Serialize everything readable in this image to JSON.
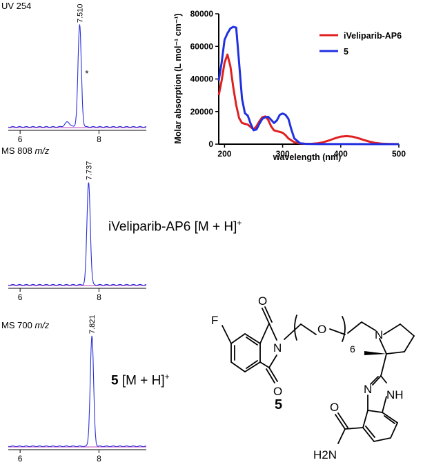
{
  "labels": {
    "uv": "UV 254",
    "ms1": "MS 808",
    "ms2": "MS 700",
    "mz": "m/z",
    "ion1_name": "iVeliparib-AP6",
    "ion_suffix": "[M + H]",
    "ion_charge": "+",
    "ion2_name": "5",
    "compound_label": "5",
    "impurity_mark": "*"
  },
  "structure": {
    "atoms": [
      "O",
      "O",
      "O",
      "F",
      "N",
      "N",
      "NH",
      "N",
      "6",
      "O",
      "H2N"
    ]
  },
  "chart_data": [
    {
      "type": "line",
      "title": "UV 254",
      "x_ticks": [
        6,
        8
      ],
      "xlim": [
        5.7,
        9.2
      ],
      "peak": {
        "rt": 7.51,
        "label": "7.510"
      },
      "annotation": "*"
    },
    {
      "type": "line",
      "title": "MS 808 m/z",
      "x_ticks": [
        6,
        8
      ],
      "xlim": [
        5.7,
        9.2
      ],
      "peak": {
        "rt": 7.737,
        "label": "7.737"
      }
    },
    {
      "type": "line",
      "title": "MS 700 m/z",
      "x_ticks": [
        6,
        8
      ],
      "xlim": [
        5.7,
        9.2
      ],
      "peak": {
        "rt": 7.821,
        "label": "7.821"
      }
    },
    {
      "type": "line",
      "xlabel": "wavelength (nm)",
      "ylabel": "Molar absorption (L mol⁻¹ cm⁻¹)",
      "xlim": [
        190,
        500
      ],
      "ylim": [
        0,
        80000
      ],
      "x_ticks": [
        "200",
        "300",
        "400",
        "500"
      ],
      "y_ticks": [
        "0",
        "20000",
        "40000",
        "60000",
        "80000"
      ],
      "legend": [
        "iVeliparib-AP6",
        "5"
      ],
      "series": [
        {
          "name": "iVeliparib-AP6",
          "color": "#e02020",
          "x": [
            190,
            195,
            200,
            205,
            210,
            215,
            220,
            225,
            230,
            235,
            240,
            245,
            250,
            255,
            260,
            265,
            270,
            275,
            280,
            285,
            290,
            295,
            300,
            305,
            310,
            320,
            330,
            340,
            350,
            360,
            370,
            380,
            390,
            400,
            410,
            420,
            430,
            440,
            450,
            460,
            470,
            480,
            490,
            500
          ],
          "y": [
            30000,
            39000,
            50000,
            55000,
            48000,
            35000,
            24000,
            16000,
            13000,
            12500,
            12000,
            10500,
            9000,
            11000,
            14000,
            16500,
            17000,
            15000,
            11000,
            8500,
            8000,
            7500,
            7000,
            5500,
            3500,
            1200,
            400,
            200,
            200,
            500,
            1200,
            2300,
            3600,
            4600,
            4900,
            4600,
            3700,
            2500,
            1500,
            700,
            300,
            150,
            80,
            50
          ]
        },
        {
          "name": "5",
          "color": "#2030e0",
          "x": [
            190,
            195,
            200,
            205,
            210,
            215,
            220,
            225,
            230,
            235,
            240,
            245,
            250,
            255,
            260,
            265,
            270,
            275,
            280,
            285,
            290,
            295,
            300,
            305,
            310,
            315,
            320,
            330,
            340,
            350,
            360,
            380,
            400,
            450,
            500
          ],
          "y": [
            39000,
            50000,
            64000,
            68000,
            71000,
            72000,
            71500,
            50000,
            28000,
            19000,
            17500,
            12500,
            8500,
            9000,
            12500,
            15500,
            16500,
            16800,
            15000,
            13000,
            14500,
            18000,
            18800,
            18000,
            15500,
            9000,
            3500,
            500,
            150,
            80,
            50,
            40,
            30,
            20,
            10
          ]
        }
      ]
    }
  ]
}
